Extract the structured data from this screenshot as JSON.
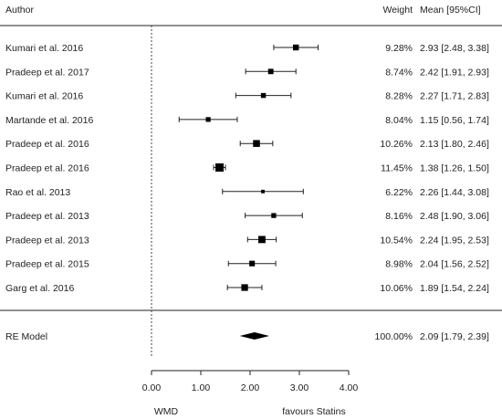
{
  "chart_data": {
    "type": "forest",
    "headers": {
      "author": "Author",
      "weight": "Weight",
      "mean": "Mean [95%CI]"
    },
    "studies": [
      {
        "author": "Kumari et al. 2016",
        "weight": "9.28%",
        "ci_text": "2.93 [2.48, 3.38]",
        "mean": 2.93,
        "lower": 2.48,
        "upper": 3.38,
        "weight_pct": 9.28
      },
      {
        "author": "Pradeep et al. 2017",
        "weight": "8.74%",
        "ci_text": "2.42 [1.91, 2.93]",
        "mean": 2.42,
        "lower": 1.91,
        "upper": 2.93,
        "weight_pct": 8.74
      },
      {
        "author": "Kumari et al. 2016",
        "weight": "8.28%",
        "ci_text": "2.27 [1.71, 2.83]",
        "mean": 2.27,
        "lower": 1.71,
        "upper": 2.83,
        "weight_pct": 8.28
      },
      {
        "author": "Martande et al. 2016",
        "weight": "8.04%",
        "ci_text": "1.15 [0.56, 1.74]",
        "mean": 1.15,
        "lower": 0.56,
        "upper": 1.74,
        "weight_pct": 8.04
      },
      {
        "author": "Pradeep et al. 2016",
        "weight": "10.26%",
        "ci_text": "2.13 [1.80, 2.46]",
        "mean": 2.13,
        "lower": 1.8,
        "upper": 2.46,
        "weight_pct": 10.26
      },
      {
        "author": "Pradeep et al. 2016",
        "weight": "11.45%",
        "ci_text": "1.38 [1.26, 1.50]",
        "mean": 1.38,
        "lower": 1.26,
        "upper": 1.5,
        "weight_pct": 11.45
      },
      {
        "author": "Rao et al. 2013",
        "weight": "6.22%",
        "ci_text": "2.26 [1.44, 3.08]",
        "mean": 2.26,
        "lower": 1.44,
        "upper": 3.08,
        "weight_pct": 6.22
      },
      {
        "author": "Pradeep et al. 2013",
        "weight": "8.16%",
        "ci_text": "2.48 [1.90, 3.06]",
        "mean": 2.48,
        "lower": 1.9,
        "upper": 3.06,
        "weight_pct": 8.16
      },
      {
        "author": "Pradeep et al. 2013",
        "weight": "10.54%",
        "ci_text": "2.24 [1.95, 2.53]",
        "mean": 2.24,
        "lower": 1.95,
        "upper": 2.53,
        "weight_pct": 10.54
      },
      {
        "author": "Pradeep et al. 2015",
        "weight": "8.98%",
        "ci_text": "2.04 [1.56, 2.52]",
        "mean": 2.04,
        "lower": 1.56,
        "upper": 2.52,
        "weight_pct": 8.98
      },
      {
        "author": "Garg et al. 2016",
        "weight": "10.06%",
        "ci_text": "1.89 [1.54, 2.24]",
        "mean": 1.89,
        "lower": 1.54,
        "upper": 2.24,
        "weight_pct": 10.06
      }
    ],
    "summary": {
      "author": "RE Model",
      "weight": "100.00%",
      "ci_text": "2.09 [1.79, 2.39]",
      "mean": 2.09,
      "lower": 1.79,
      "upper": 2.39
    },
    "x_ticks": [
      {
        "value": 0,
        "label": "0.00"
      },
      {
        "value": 1,
        "label": "1.00"
      },
      {
        "value": 2,
        "label": "2.00"
      },
      {
        "value": 3,
        "label": "3.00"
      },
      {
        "value": 4,
        "label": "4.00"
      }
    ],
    "xlim": [
      0,
      4
    ],
    "reference_line": 0,
    "xlabel_left": "WMD",
    "xlabel_right": "favours Statins",
    "colors": {
      "marker": "#000000",
      "line": "#222222",
      "reference": "#444444"
    }
  }
}
